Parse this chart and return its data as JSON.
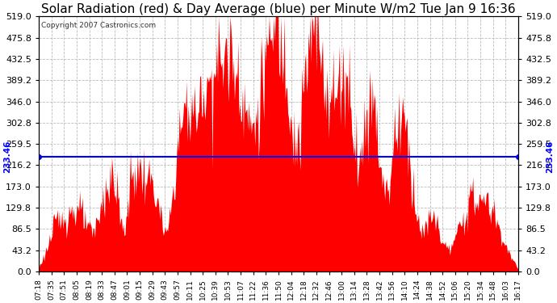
{
  "title": "Solar Radiation (red) & Day Average (blue) per Minute W/m2 Tue Jan 9 16:36",
  "copyright": "Copyright 2007 Castronics.com",
  "day_average": 233.46,
  "ymin": 0.0,
  "ymax": 519.0,
  "yticks": [
    0.0,
    43.2,
    86.5,
    129.8,
    173.0,
    216.2,
    259.5,
    302.8,
    346.0,
    389.2,
    432.5,
    475.8,
    519.0
  ],
  "ytick_labels": [
    "0.0",
    "43.2",
    "86.5",
    "129.8",
    "173.0",
    "216.2",
    "259.5",
    "302.8",
    "346.0",
    "389.2",
    "432.5",
    "475.8",
    "519.0"
  ],
  "background_color": "#ffffff",
  "grid_color": "#bbbbbb",
  "bar_color": "#ff0000",
  "line_color": "#0000ff",
  "title_fontsize": 11,
  "tick_fontsize": 8,
  "label_color": "#000000",
  "xtick_times": [
    "07:18",
    "07:35",
    "07:51",
    "08:05",
    "08:19",
    "08:33",
    "08:47",
    "09:01",
    "09:15",
    "09:29",
    "09:43",
    "09:57",
    "10:11",
    "10:25",
    "10:39",
    "10:53",
    "11:07",
    "11:22",
    "11:36",
    "11:50",
    "12:04",
    "12:18",
    "12:32",
    "12:46",
    "13:00",
    "13:14",
    "13:28",
    "13:42",
    "13:56",
    "14:10",
    "14:24",
    "14:38",
    "14:52",
    "15:06",
    "15:20",
    "15:34",
    "15:48",
    "16:03",
    "16:17"
  ]
}
